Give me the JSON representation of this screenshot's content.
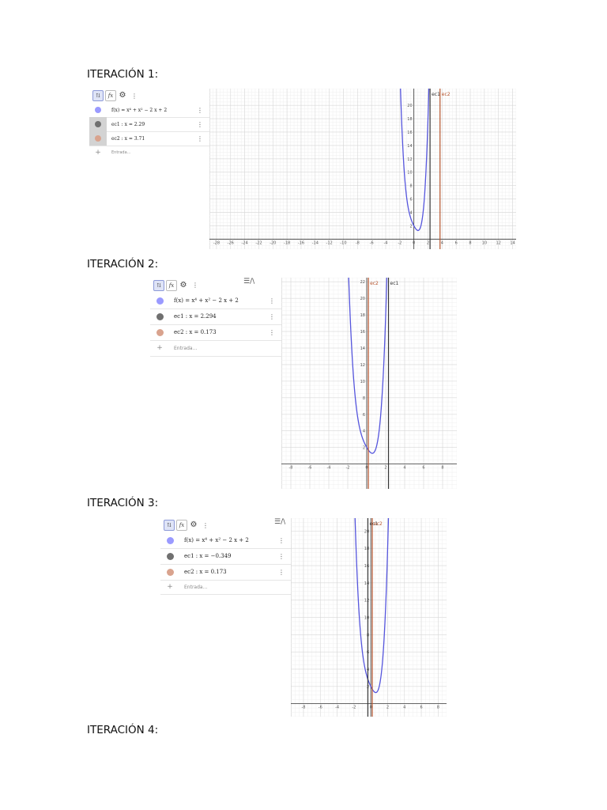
{
  "headings": [
    "ITERACIÓN 1:",
    "ITERACIÓN 2:",
    "ITERACIÓN 3:",
    "ITERACIÓN 4:"
  ],
  "colors": {
    "function": "#5555dd",
    "ec1": "#333333",
    "ec2": "#b5532c",
    "dot_function": "#9a9aff",
    "dot_ec1": "#707070",
    "dot_ec2": "#d9a38e"
  },
  "icons": [
    "graphing-toggle-icon",
    "fx-icon",
    "gear-icon",
    "kebab-icon",
    "menu-icon",
    "plus-icon"
  ],
  "toolbar": {
    "fx": "fx",
    "gear": "⚙",
    "kebab": "⋮",
    "menu": "☰/\\"
  },
  "entrada": "Entrada...",
  "iterations": [
    {
      "rows": [
        "f(x) = x⁴ + x² − 2 x + 2",
        "ec1 : x = 2.29",
        "ec2 : x = 3.71"
      ]
    },
    {
      "rows": [
        "f(x) = x⁴ + x² − 2 x + 2",
        "ec1 : x = 2.294",
        "ec2 : x = 0.173"
      ]
    },
    {
      "rows": [
        "f(x) = x⁴ + x² − 2 x + 2",
        "ec1 : x = −0.349",
        "ec2 : x = 0.173"
      ]
    }
  ],
  "chart_data": [
    {
      "type": "line",
      "title": "",
      "function": "x^4 + x^2 - 2x + 2",
      "xlim": [
        -29,
        14.5
      ],
      "ylim": [
        -1.5,
        22.5
      ],
      "x_ticks": [
        -28,
        -26,
        -24,
        -22,
        -20,
        -18,
        -16,
        -14,
        -12,
        -10,
        -8,
        -6,
        -4,
        -2,
        0,
        2,
        4,
        6,
        8,
        10,
        12,
        14
      ],
      "x_tick_labels": [
        "-28",
        "-26",
        "-24",
        "-22",
        "-20",
        "-18",
        "-16",
        "-14",
        "-12",
        "-10",
        "-8",
        "-6",
        "-4",
        "-2",
        "0",
        "2",
        "4",
        "6",
        "8",
        "10",
        "12",
        "14"
      ],
      "y_ticks": [
        2,
        4,
        6,
        8,
        10,
        12,
        14,
        16,
        18,
        20
      ],
      "y_tick_labels": [
        "2",
        "4",
        "6",
        "8",
        "10",
        "12",
        "14",
        "16",
        "18",
        "20"
      ],
      "vlines": [
        {
          "name": "ec1",
          "x": 2.29
        },
        {
          "name": "ec2",
          "x": 3.71
        }
      ]
    },
    {
      "type": "line",
      "title": "",
      "function": "x^4 + x^2 - 2x + 2",
      "xlim": [
        -9,
        9.5
      ],
      "ylim": [
        -3,
        22.5
      ],
      "x_ticks": [
        -8,
        -6,
        -4,
        -2,
        0,
        2,
        4,
        6,
        8
      ],
      "x_tick_labels": [
        "-8",
        "-6",
        "-4",
        "-2",
        "0",
        "2",
        "4",
        "6",
        "8"
      ],
      "y_ticks": [
        2,
        4,
        6,
        8,
        10,
        12,
        14,
        16,
        18,
        20,
        22
      ],
      "y_tick_labels": [
        "2",
        "4",
        "6",
        "8",
        "10",
        "12",
        "14",
        "16",
        "18",
        "20",
        "22"
      ],
      "vlines": [
        {
          "name": "ec1",
          "x": 2.294
        },
        {
          "name": "ec2",
          "x": 0.173
        }
      ]
    },
    {
      "type": "line",
      "title": "",
      "function": "x^4 + x^2 - 2x + 2",
      "xlim": [
        -9.5,
        9
      ],
      "ylim": [
        -1.5,
        21.5
      ],
      "x_ticks": [
        -8,
        -6,
        -4,
        -2,
        0,
        2,
        4,
        6,
        8
      ],
      "x_tick_labels": [
        "-8",
        "-6",
        "-4",
        "-2",
        "0",
        "2",
        "4",
        "6",
        "8"
      ],
      "y_ticks": [
        2,
        4,
        6,
        8,
        10,
        12,
        14,
        16,
        18,
        20
      ],
      "y_tick_labels": [
        "2",
        "4",
        "6",
        "8",
        "10",
        "12",
        "14",
        "16",
        "18",
        "20"
      ],
      "vlines": [
        {
          "name": "ec1",
          "x": -0.349
        },
        {
          "name": "ec2",
          "x": 0.173
        }
      ]
    }
  ]
}
